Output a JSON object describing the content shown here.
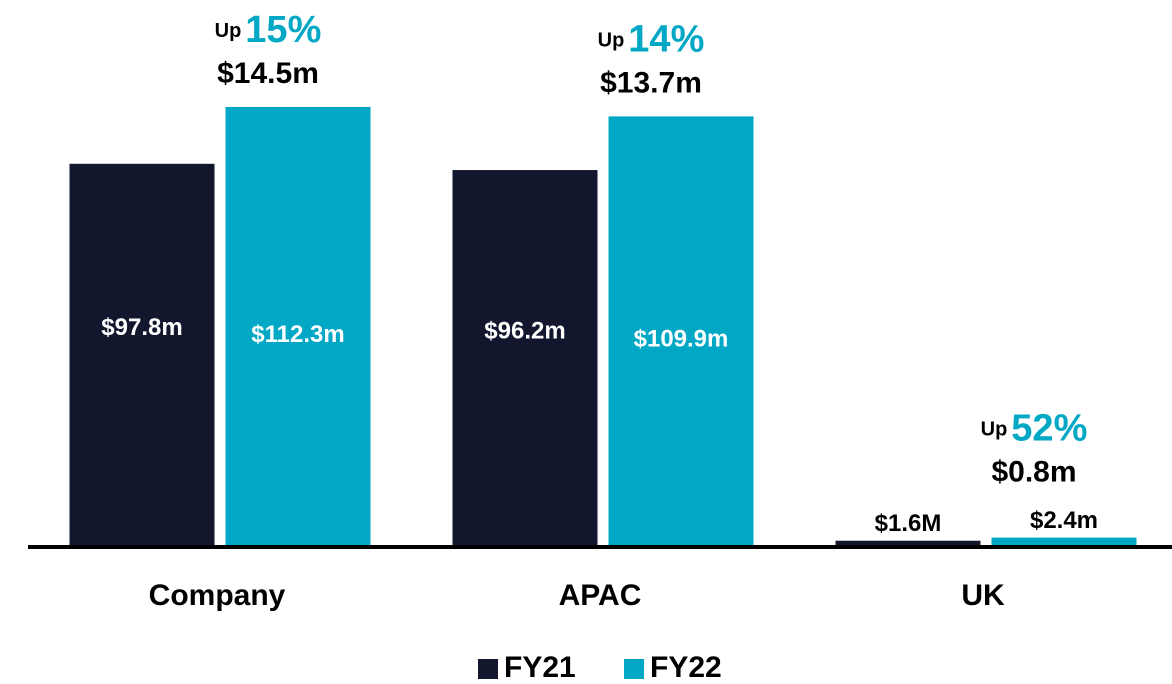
{
  "chart_data": {
    "type": "bar",
    "categories": [
      "Company",
      "APAC",
      "UK"
    ],
    "series": [
      {
        "name": "FY21",
        "color": "#12172e",
        "values": [
          97.8,
          96.2,
          1.6
        ],
        "value_labels": [
          "$97.8m",
          "$96.2m",
          "$1.6M"
        ]
      },
      {
        "name": "FY22",
        "color": "#00a8c6",
        "values": [
          112.3,
          109.9,
          2.4
        ],
        "value_labels": [
          "$112.3m",
          "$109.9m",
          "$2.4m"
        ]
      }
    ],
    "annotations": [
      {
        "prefix": "Up",
        "change": "15%",
        "difference": "$14.5m"
      },
      {
        "prefix": "Up",
        "change": "14%",
        "difference": "$13.7m"
      },
      {
        "prefix": "Up",
        "change": "52%",
        "difference": "$0.8m"
      }
    ],
    "ylim": [
      0,
      115
    ],
    "legend": "bottom"
  }
}
